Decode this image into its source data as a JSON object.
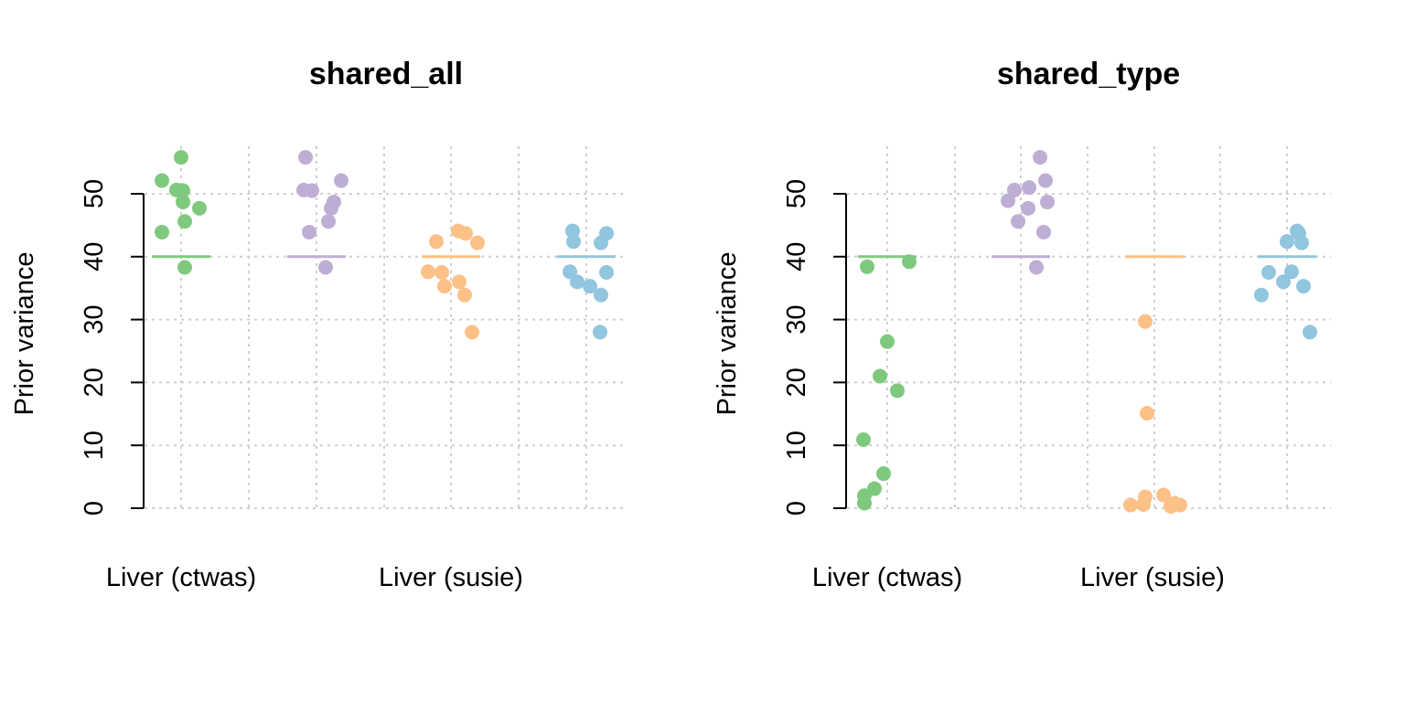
{
  "colors": {
    "group1": "#7fc97f",
    "group2": "#beaed4",
    "group3": "#fdc086",
    "group4": "#92c5de"
  },
  "chart_data": [
    {
      "type": "scatter",
      "title": "shared_all",
      "ylabel": "Prior variance",
      "ylim": [
        0,
        55
      ],
      "yticks": [
        0,
        10,
        20,
        30,
        40,
        50
      ],
      "x_tick_labels": [
        "Liver (ctwas)",
        "Liver (susie)"
      ],
      "grid": true,
      "groups": [
        {
          "color": "#7fc97f",
          "reference": 40,
          "values": [
            55.8,
            52.1,
            50.6,
            50.5,
            48.7,
            47.7,
            45.6,
            43.9,
            38.3
          ]
        },
        {
          "color": "#beaed4",
          "reference": 40,
          "values": [
            55.8,
            52.1,
            50.6,
            50.5,
            48.7,
            47.7,
            45.6,
            43.9,
            38.3
          ]
        },
        {
          "color": "#fdc086",
          "reference": 40,
          "values": [
            44.1,
            43.7,
            42.4,
            42.2,
            37.6,
            37.5,
            36.0,
            35.3,
            33.9,
            28.0
          ]
        },
        {
          "color": "#92c5de",
          "reference": 40,
          "values": [
            44.1,
            43.7,
            42.4,
            42.2,
            37.6,
            37.5,
            36.0,
            35.3,
            33.9,
            28.0
          ]
        }
      ]
    },
    {
      "type": "scatter",
      "title": "shared_type",
      "ylabel": "Prior variance",
      "ylim": [
        0,
        55
      ],
      "yticks": [
        0,
        10,
        20,
        30,
        40,
        50
      ],
      "x_tick_labels": [
        "Liver (ctwas)",
        "Liver (susie)"
      ],
      "grid": true,
      "groups": [
        {
          "color": "#7fc97f",
          "reference": 40,
          "values": [
            39.2,
            38.4,
            26.5,
            21.0,
            18.7,
            10.9,
            5.5,
            3.1,
            2.0,
            0.8
          ]
        },
        {
          "color": "#beaed4",
          "reference": 40,
          "values": [
            55.8,
            52.1,
            51.0,
            50.6,
            48.9,
            48.7,
            47.7,
            45.6,
            43.9,
            38.3
          ]
        },
        {
          "color": "#fdc086",
          "reference": 40,
          "values": [
            29.7,
            15.1,
            2.1,
            1.8,
            0.8,
            0.6,
            0.5,
            0.5,
            0.3
          ]
        },
        {
          "color": "#92c5de",
          "reference": 40,
          "values": [
            44.1,
            43.7,
            42.4,
            42.2,
            37.6,
            37.5,
            36.0,
            35.3,
            33.9,
            28.0
          ]
        }
      ]
    }
  ]
}
